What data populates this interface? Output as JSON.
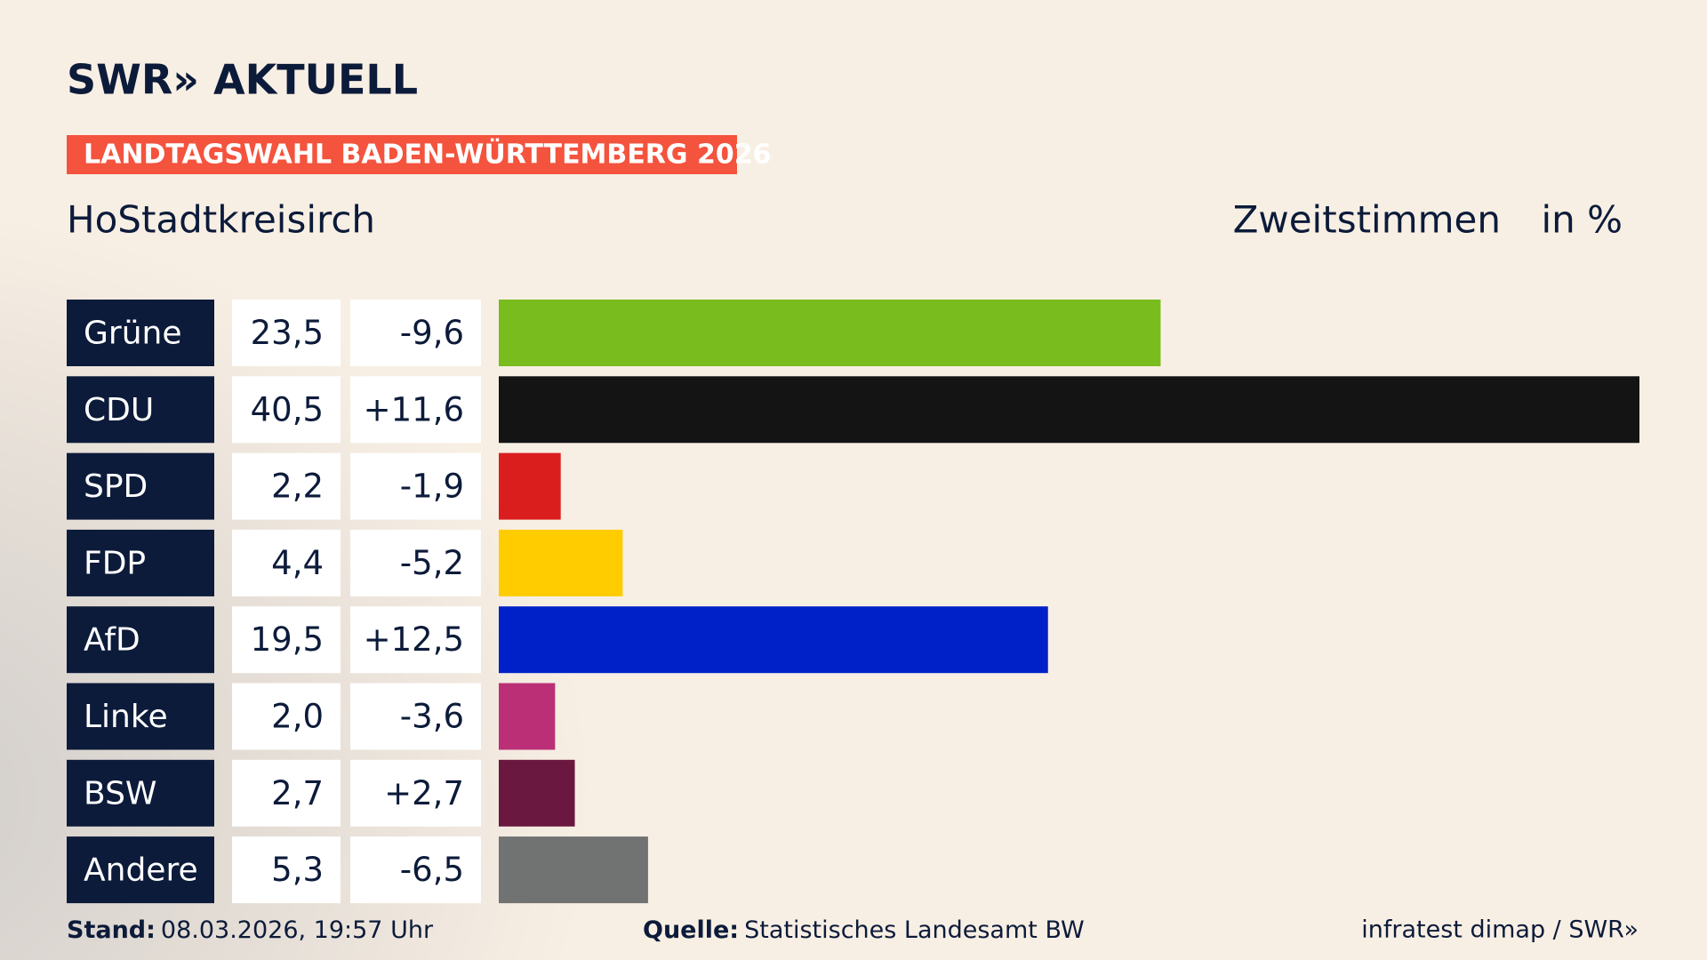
{
  "header": {
    "logo": "SWR» AKTUELL"
  },
  "chart_data": {
    "type": "bar",
    "title": "LANDTAGSWAHL BADEN-WÜRTTEMBERG 2026",
    "subtitle": "HoStadtkreisirch",
    "measure": "Zweitstimmen",
    "unit": "in %",
    "categories": [
      "Grüne",
      "CDU",
      "SPD",
      "FDP",
      "AfD",
      "Linke",
      "BSW",
      "Andere"
    ],
    "values": [
      23.5,
      40.5,
      2.2,
      4.4,
      19.5,
      2.0,
      2.7,
      5.3
    ],
    "value_labels": [
      "23,5",
      "40,5",
      "2,2",
      "4,4",
      "19,5",
      "2,0",
      "2,7",
      "5,3"
    ],
    "change_values": [
      -9.6,
      11.6,
      -1.9,
      -5.2,
      12.5,
      -3.6,
      2.7,
      -6.5
    ],
    "change_value_labels": [
      "-9,6",
      "+11,6",
      "-1,9",
      "-5,2",
      "+12,5",
      "-3,6",
      "+2,7",
      "-6,5"
    ],
    "colors": [
      "#78bc1e",
      "#141414",
      "#da1e1e",
      "#ffcc00",
      "#0021c8",
      "#bb2f77",
      "#6a183f",
      "#717272"
    ]
  },
  "footer": {
    "stand_label": "Stand:",
    "stand": "08.03.2026, 19:57 Uhr",
    "source_label": "Quelle:",
    "source": "Statistisches Landesamt BW",
    "credit": "infratest dimap / SWR»"
  }
}
